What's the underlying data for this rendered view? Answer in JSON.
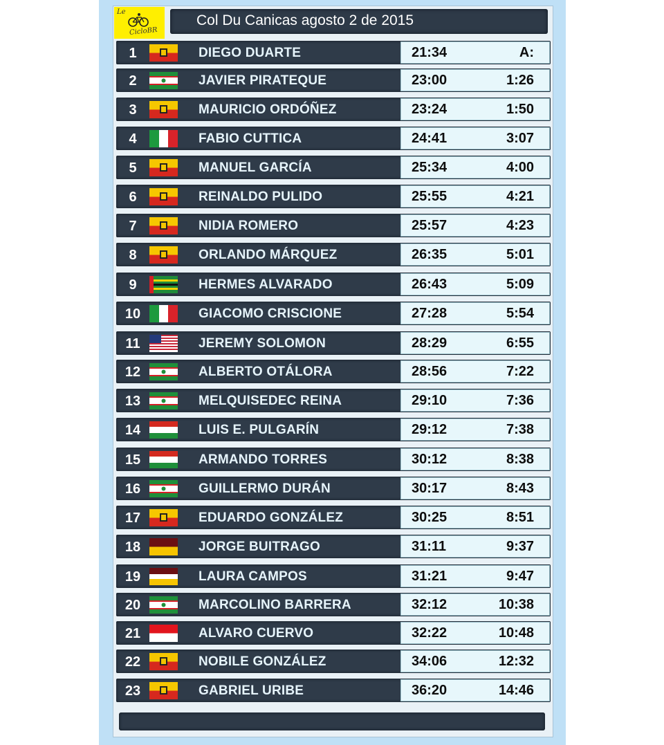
{
  "header": {
    "title": "Col Du Canicas agosto 2 de 2015",
    "logo": {
      "top_text": "Le",
      "wordmark": "CicloBR",
      "icon": "bicycle-icon",
      "bg_color": "#ffef00"
    }
  },
  "colors": {
    "frame": "#bfe0f6",
    "row_bg": "#2f3b49",
    "name_text": "#e6f4fb",
    "time_box": "#e7f7fb"
  },
  "rows": [
    {
      "pos": "1",
      "name": "DIEGO DUARTE",
      "time": "21:34",
      "gap": "A:",
      "flag": "bogota"
    },
    {
      "pos": "2",
      "name": "JAVIER PIRATEQUE",
      "time": "23:00",
      "gap": "1:26",
      "flag": "green-white-red"
    },
    {
      "pos": "3",
      "name": "MAURICIO ORDÓÑEZ",
      "time": "23:24",
      "gap": "1:50",
      "flag": "bogota"
    },
    {
      "pos": "4",
      "name": "FABIO CUTTICA",
      "time": "24:41",
      "gap": "3:07",
      "flag": "italy"
    },
    {
      "pos": "5",
      "name": "MANUEL GARCÍA",
      "time": "25:34",
      "gap": "4:00",
      "flag": "bogota"
    },
    {
      "pos": "6",
      "name": "REINALDO PULIDO",
      "time": "25:55",
      "gap": "4:21",
      "flag": "bogota"
    },
    {
      "pos": "7",
      "name": "NIDIA ROMERO",
      "time": "25:57",
      "gap": "4:23",
      "flag": "bogota"
    },
    {
      "pos": "8",
      "name": "ORLANDO MÁRQUEZ",
      "time": "26:35",
      "gap": "5:01",
      "flag": "bogota"
    },
    {
      "pos": "9",
      "name": "HERMES ALVARADO",
      "time": "26:43",
      "gap": "5:09",
      "flag": "stripes-green"
    },
    {
      "pos": "10",
      "name": "GIACOMO CRISCIONE",
      "time": "27:28",
      "gap": "5:54",
      "flag": "italy"
    },
    {
      "pos": "11",
      "name": "JEREMY SOLOMON",
      "time": "28:29",
      "gap": "6:55",
      "flag": "usa"
    },
    {
      "pos": "12",
      "name": "ALBERTO OTÁLORA",
      "time": "28:56",
      "gap": "7:22",
      "flag": "green-white-red"
    },
    {
      "pos": "13",
      "name": "MELQUISEDEC REINA",
      "time": "29:10",
      "gap": "7:36",
      "flag": "green-white-red"
    },
    {
      "pos": "14",
      "name": "LUIS E. PULGARÍN",
      "time": "29:12",
      "gap": "7:38",
      "flag": "red-white-green"
    },
    {
      "pos": "15",
      "name": "ARMANDO TORRES",
      "time": "30:12",
      "gap": "8:38",
      "flag": "red-white-green"
    },
    {
      "pos": "16",
      "name": "GUILLERMO DURÁN",
      "time": "30:17",
      "gap": "8:43",
      "flag": "green-white-red"
    },
    {
      "pos": "17",
      "name": "EDUARDO GONZÁLEZ",
      "time": "30:25",
      "gap": "8:51",
      "flag": "bogota"
    },
    {
      "pos": "18",
      "name": "JORGE BUITRAGO",
      "time": "31:11",
      "gap": "9:37",
      "flag": "maroon-yellow"
    },
    {
      "pos": "19",
      "name": "LAURA CAMPOS",
      "time": "31:21",
      "gap": "9:47",
      "flag": "maroon-white-yellow"
    },
    {
      "pos": "20",
      "name": "MARCOLINO BARRERA",
      "time": "32:12",
      "gap": "10:38",
      "flag": "green-white-red"
    },
    {
      "pos": "21",
      "name": "ALVARO CUERVO",
      "time": "32:22",
      "gap": "10:48",
      "flag": "red-white"
    },
    {
      "pos": "22",
      "name": "NOBILE GONZÁLEZ",
      "time": "34:06",
      "gap": "12:32",
      "flag": "bogota"
    },
    {
      "pos": "23",
      "name": "GABRIEL URIBE",
      "time": "36:20",
      "gap": "14:46",
      "flag": "bogota"
    }
  ]
}
